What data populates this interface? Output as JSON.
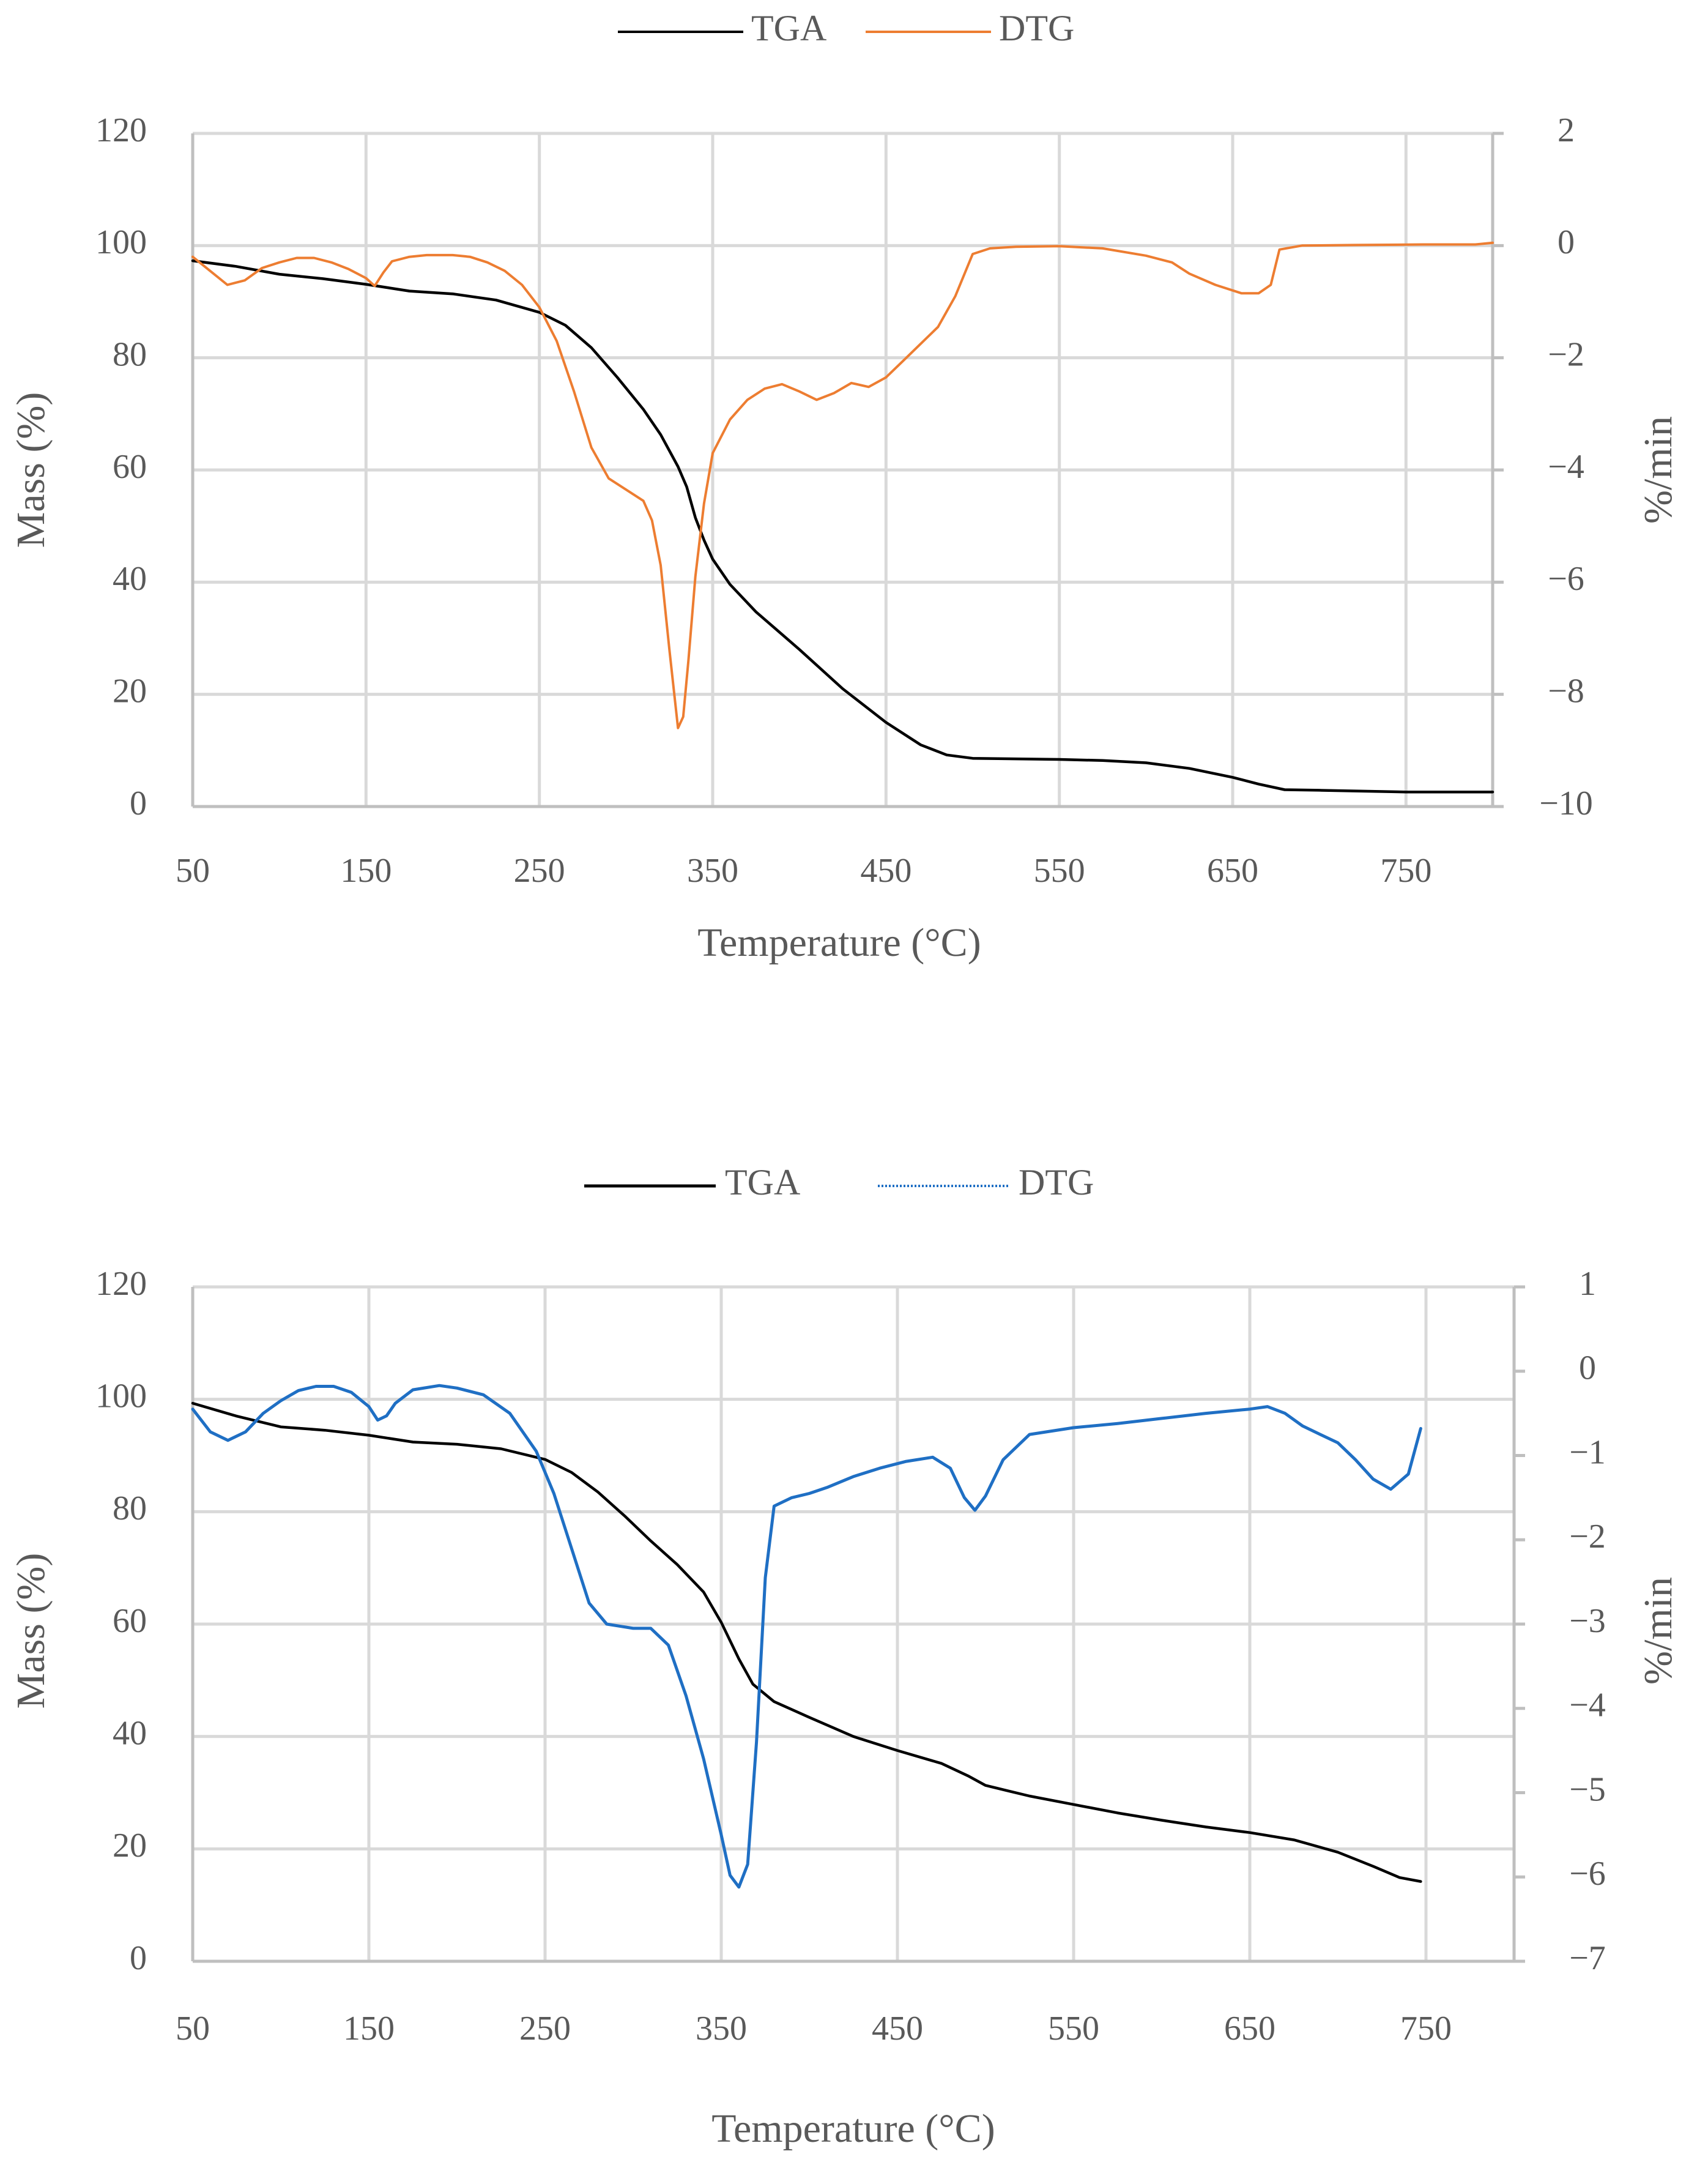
{
  "figure": {
    "panels": 2
  },
  "chart_data": [
    {
      "type": "line",
      "title": "",
      "xlabel": "Temperature (°C)",
      "ylabel": "Mass (%)",
      "y2label": "%/min",
      "xlim": [
        50,
        800
      ],
      "ylim": [
        0,
        120
      ],
      "y2lim": [
        -10,
        2
      ],
      "x_ticks": [
        50,
        150,
        250,
        350,
        450,
        550,
        650,
        750
      ],
      "y_ticks": [
        0,
        20,
        40,
        60,
        80,
        100,
        120
      ],
      "y2_ticks": [
        -10,
        -8,
        -6,
        -4,
        -2,
        0,
        2
      ],
      "y2_tick_labels": [
        "−10",
        "−8",
        "−6",
        "−4",
        "−2",
        "0",
        "2"
      ],
      "grid": true,
      "legend_position": "top-center",
      "colors": {
        "TGA": "#000000",
        "DTG": "#ED7D31"
      },
      "series": [
        {
          "name": "TGA",
          "axis": "left",
          "style": "solid",
          "points": [
            [
              50,
              97.3
            ],
            [
              75,
              96.3
            ],
            [
              100,
              94.9
            ],
            [
              125,
              94.1
            ],
            [
              150,
              93.1
            ],
            [
              175,
              91.9
            ],
            [
              200,
              91.4
            ],
            [
              225,
              90.3
            ],
            [
              250,
              88.1
            ],
            [
              265,
              85.8
            ],
            [
              280,
              81.8
            ],
            [
              295,
              76.5
            ],
            [
              310,
              70.8
            ],
            [
              320,
              66.3
            ],
            [
              330,
              60.6
            ],
            [
              335,
              57.0
            ],
            [
              340,
              51.5
            ],
            [
              345,
              47.5
            ],
            [
              350,
              44.1
            ],
            [
              360,
              39.6
            ],
            [
              375,
              34.7
            ],
            [
              400,
              28.0
            ],
            [
              425,
              21.0
            ],
            [
              450,
              15.0
            ],
            [
              470,
              11.0
            ],
            [
              485,
              9.2
            ],
            [
              500,
              8.6
            ],
            [
              525,
              8.5
            ],
            [
              550,
              8.4
            ],
            [
              575,
              8.2
            ],
            [
              600,
              7.8
            ],
            [
              625,
              6.8
            ],
            [
              650,
              5.2
            ],
            [
              665,
              4.0
            ],
            [
              680,
              3.0
            ],
            [
              700,
              2.9
            ],
            [
              750,
              2.6
            ],
            [
              800,
              2.6
            ]
          ]
        },
        {
          "name": "DTG",
          "axis": "right",
          "style": "solid",
          "points": [
            [
              50,
              -0.2
            ],
            [
              60,
              -0.45
            ],
            [
              70,
              -0.7
            ],
            [
              80,
              -0.62
            ],
            [
              90,
              -0.4
            ],
            [
              100,
              -0.3
            ],
            [
              110,
              -0.22
            ],
            [
              120,
              -0.22
            ],
            [
              130,
              -0.3
            ],
            [
              140,
              -0.42
            ],
            [
              150,
              -0.58
            ],
            [
              155,
              -0.72
            ],
            [
              160,
              -0.48
            ],
            [
              165,
              -0.28
            ],
            [
              175,
              -0.2
            ],
            [
              185,
              -0.17
            ],
            [
              200,
              -0.17
            ],
            [
              210,
              -0.2
            ],
            [
              220,
              -0.3
            ],
            [
              230,
              -0.45
            ],
            [
              240,
              -0.7
            ],
            [
              250,
              -1.1
            ],
            [
              260,
              -1.7
            ],
            [
              270,
              -2.6
            ],
            [
              280,
              -3.6
            ],
            [
              290,
              -4.15
            ],
            [
              300,
              -4.35
            ],
            [
              310,
              -4.55
            ],
            [
              315,
              -4.9
            ],
            [
              320,
              -5.7
            ],
            [
              325,
              -7.2
            ],
            [
              330,
              -8.6
            ],
            [
              333,
              -8.4
            ],
            [
              336,
              -7.4
            ],
            [
              340,
              -5.9
            ],
            [
              345,
              -4.6
            ],
            [
              350,
              -3.7
            ],
            [
              360,
              -3.1
            ],
            [
              370,
              -2.75
            ],
            [
              380,
              -2.55
            ],
            [
              390,
              -2.47
            ],
            [
              400,
              -2.6
            ],
            [
              410,
              -2.75
            ],
            [
              420,
              -2.63
            ],
            [
              430,
              -2.45
            ],
            [
              440,
              -2.52
            ],
            [
              450,
              -2.35
            ],
            [
              460,
              -2.05
            ],
            [
              470,
              -1.75
            ],
            [
              480,
              -1.45
            ],
            [
              490,
              -0.9
            ],
            [
              500,
              -0.15
            ],
            [
              510,
              -0.05
            ],
            [
              525,
              -0.02
            ],
            [
              550,
              -0.01
            ],
            [
              575,
              -0.05
            ],
            [
              600,
              -0.18
            ],
            [
              615,
              -0.3
            ],
            [
              625,
              -0.5
            ],
            [
              640,
              -0.7
            ],
            [
              655,
              -0.85
            ],
            [
              665,
              -0.85
            ],
            [
              672,
              -0.7
            ],
            [
              677,
              -0.07
            ],
            [
              690,
              0
            ],
            [
              720,
              0.01
            ],
            [
              760,
              0.02
            ],
            [
              790,
              0.02
            ],
            [
              800,
              0.05
            ]
          ]
        }
      ]
    },
    {
      "type": "line",
      "title": "",
      "xlabel": "Temperature (°C)",
      "ylabel": "Mass (%)",
      "y2label": "%/min",
      "xlim": [
        50,
        800
      ],
      "ylim": [
        0,
        120
      ],
      "y2lim": [
        -7,
        1
      ],
      "x_ticks": [
        50,
        150,
        250,
        350,
        450,
        550,
        650,
        750
      ],
      "y_ticks": [
        0,
        20,
        40,
        60,
        80,
        100,
        120
      ],
      "y2_ticks": [
        -7,
        -6,
        -5,
        -4,
        -3,
        -2,
        -1,
        0,
        1
      ],
      "y2_tick_labels": [
        "−7",
        "−6",
        "−5",
        "−4",
        "−3",
        "−2",
        "−1",
        "0",
        "1"
      ],
      "grid": true,
      "legend_position": "top-center",
      "colors": {
        "TGA": "#000000",
        "DTG": "#1F6FC4"
      },
      "series": [
        {
          "name": "TGA",
          "axis": "left",
          "style": "solid",
          "points": [
            [
              50,
              99.3
            ],
            [
              75,
              97.0
            ],
            [
              100,
              95.1
            ],
            [
              125,
              94.5
            ],
            [
              150,
              93.6
            ],
            [
              175,
              92.4
            ],
            [
              200,
              92.0
            ],
            [
              225,
              91.2
            ],
            [
              250,
              89.3
            ],
            [
              265,
              87.0
            ],
            [
              280,
              83.5
            ],
            [
              295,
              79.3
            ],
            [
              310,
              74.8
            ],
            [
              325,
              70.6
            ],
            [
              340,
              65.7
            ],
            [
              350,
              60.3
            ],
            [
              360,
              53.8
            ],
            [
              368,
              49.3
            ],
            [
              380,
              46.2
            ],
            [
              400,
              43.4
            ],
            [
              425,
              40.0
            ],
            [
              450,
              37.5
            ],
            [
              475,
              35.2
            ],
            [
              490,
              33.0
            ],
            [
              500,
              31.3
            ],
            [
              525,
              29.4
            ],
            [
              550,
              27.9
            ],
            [
              575,
              26.4
            ],
            [
              600,
              25.1
            ],
            [
              625,
              23.9
            ],
            [
              650,
              22.9
            ],
            [
              675,
              21.6
            ],
            [
              700,
              19.4
            ],
            [
              720,
              16.9
            ],
            [
              735,
              14.9
            ],
            [
              747,
              14.2
            ]
          ]
        },
        {
          "name": "DTG",
          "axis": "right",
          "style": "dotted",
          "points": [
            [
              50,
              -0.45
            ],
            [
              60,
              -0.72
            ],
            [
              70,
              -0.82
            ],
            [
              80,
              -0.72
            ],
            [
              90,
              -0.5
            ],
            [
              100,
              -0.35
            ],
            [
              110,
              -0.23
            ],
            [
              120,
              -0.18
            ],
            [
              130,
              -0.18
            ],
            [
              140,
              -0.25
            ],
            [
              150,
              -0.42
            ],
            [
              155,
              -0.58
            ],
            [
              160,
              -0.53
            ],
            [
              165,
              -0.38
            ],
            [
              175,
              -0.22
            ],
            [
              190,
              -0.17
            ],
            [
              200,
              -0.2
            ],
            [
              215,
              -0.28
            ],
            [
              230,
              -0.5
            ],
            [
              245,
              -0.95
            ],
            [
              255,
              -1.45
            ],
            [
              265,
              -2.1
            ],
            [
              275,
              -2.75
            ],
            [
              285,
              -3.0
            ],
            [
              300,
              -3.05
            ],
            [
              310,
              -3.05
            ],
            [
              320,
              -3.25
            ],
            [
              330,
              -3.85
            ],
            [
              340,
              -4.6
            ],
            [
              350,
              -5.5
            ],
            [
              355,
              -5.98
            ],
            [
              360,
              -6.12
            ],
            [
              365,
              -5.85
            ],
            [
              370,
              -4.4
            ],
            [
              375,
              -2.45
            ],
            [
              380,
              -1.6
            ],
            [
              390,
              -1.5
            ],
            [
              400,
              -1.45
            ],
            [
              410,
              -1.38
            ],
            [
              425,
              -1.25
            ],
            [
              440,
              -1.15
            ],
            [
              455,
              -1.07
            ],
            [
              470,
              -1.02
            ],
            [
              480,
              -1.15
            ],
            [
              488,
              -1.5
            ],
            [
              494,
              -1.65
            ],
            [
              500,
              -1.48
            ],
            [
              510,
              -1.05
            ],
            [
              525,
              -0.75
            ],
            [
              550,
              -0.67
            ],
            [
              575,
              -0.62
            ],
            [
              600,
              -0.56
            ],
            [
              625,
              -0.5
            ],
            [
              650,
              -0.45
            ],
            [
              660,
              -0.42
            ],
            [
              670,
              -0.5
            ],
            [
              680,
              -0.65
            ],
            [
              690,
              -0.75
            ],
            [
              700,
              -0.85
            ],
            [
              710,
              -1.05
            ],
            [
              720,
              -1.28
            ],
            [
              730,
              -1.4
            ],
            [
              740,
              -1.22
            ],
            [
              747,
              -0.68
            ]
          ]
        }
      ]
    }
  ]
}
